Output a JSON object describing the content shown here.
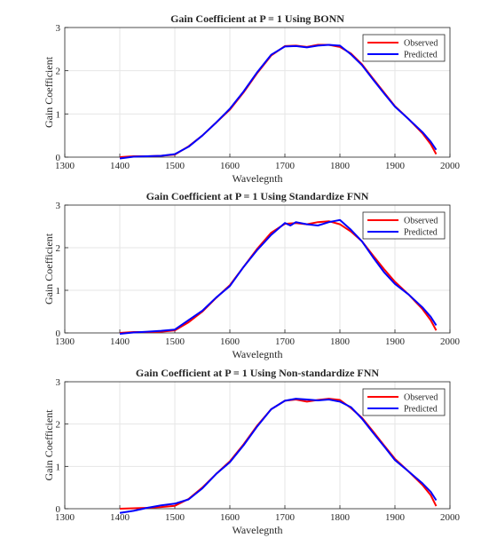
{
  "chart_data": [
    {
      "type": "line",
      "title": "Gain Coefficient at P = 1 Using BONN",
      "xlabel": "Wavelegnth",
      "ylabel": "Gain Coefficient",
      "xlim": [
        1300,
        2000
      ],
      "ylim": [
        0,
        3
      ],
      "xticks": [
        "1300",
        "1400",
        "1500",
        "1600",
        "1700",
        "1800",
        "1900",
        "2000"
      ],
      "yticks": [
        "0",
        "1",
        "2",
        "3"
      ],
      "grid": true,
      "legend": "top-right",
      "series": [
        {
          "name": "Observed",
          "color": "#ff0000",
          "x": [
            1400,
            1425,
            1450,
            1475,
            1500,
            1525,
            1550,
            1575,
            1600,
            1625,
            1650,
            1675,
            1700,
            1720,
            1740,
            1760,
            1780,
            1800,
            1820,
            1840,
            1860,
            1880,
            1900,
            1925,
            1950,
            1965,
            1975
          ],
          "y": [
            0.0,
            0.02,
            0.02,
            0.03,
            0.06,
            0.25,
            0.5,
            0.8,
            1.1,
            1.5,
            1.95,
            2.35,
            2.57,
            2.58,
            2.55,
            2.6,
            2.6,
            2.55,
            2.4,
            2.15,
            1.82,
            1.5,
            1.18,
            0.88,
            0.55,
            0.3,
            0.07
          ]
        },
        {
          "name": "Predicted",
          "color": "#0000ff",
          "x": [
            1400,
            1425,
            1450,
            1475,
            1500,
            1525,
            1550,
            1575,
            1600,
            1625,
            1650,
            1675,
            1700,
            1720,
            1740,
            1760,
            1780,
            1800,
            1820,
            1840,
            1860,
            1880,
            1900,
            1925,
            1950,
            1965,
            1975
          ],
          "y": [
            -0.03,
            0.01,
            0.02,
            0.03,
            0.07,
            0.24,
            0.5,
            0.8,
            1.12,
            1.52,
            1.97,
            2.37,
            2.56,
            2.57,
            2.54,
            2.58,
            2.6,
            2.58,
            2.38,
            2.13,
            1.8,
            1.48,
            1.17,
            0.88,
            0.58,
            0.36,
            0.17
          ]
        }
      ]
    },
    {
      "type": "line",
      "title": "Gain Coefficient at P = 1 Using Standardize FNN",
      "xlabel": "Wavelegnth",
      "ylabel": "Gain Coefficient",
      "xlim": [
        1300,
        2000
      ],
      "ylim": [
        0,
        3
      ],
      "xticks": [
        "1300",
        "1400",
        "1500",
        "1600",
        "1700",
        "1800",
        "1900",
        "2000"
      ],
      "yticks": [
        "0",
        "1",
        "2",
        "3"
      ],
      "grid": true,
      "legend": "top-right",
      "series": [
        {
          "name": "Observed",
          "color": "#ff0000",
          "x": [
            1400,
            1425,
            1450,
            1475,
            1500,
            1525,
            1550,
            1575,
            1600,
            1625,
            1650,
            1675,
            1700,
            1720,
            1740,
            1760,
            1780,
            1800,
            1820,
            1840,
            1860,
            1880,
            1900,
            1925,
            1950,
            1965,
            1975
          ],
          "y": [
            0.0,
            0.02,
            0.02,
            0.03,
            0.06,
            0.25,
            0.5,
            0.82,
            1.12,
            1.55,
            1.98,
            2.35,
            2.56,
            2.58,
            2.55,
            2.6,
            2.62,
            2.55,
            2.38,
            2.15,
            1.82,
            1.5,
            1.2,
            0.9,
            0.56,
            0.3,
            0.06
          ]
        },
        {
          "name": "Predicted",
          "color": "#0000ff",
          "x": [
            1400,
            1425,
            1450,
            1475,
            1500,
            1525,
            1550,
            1575,
            1600,
            1625,
            1650,
            1675,
            1700,
            1710,
            1720,
            1740,
            1760,
            1780,
            1800,
            1820,
            1840,
            1860,
            1880,
            1900,
            1925,
            1950,
            1965,
            1975
          ],
          "y": [
            -0.02,
            0.01,
            0.03,
            0.05,
            0.08,
            0.3,
            0.52,
            0.83,
            1.1,
            1.55,
            1.95,
            2.3,
            2.58,
            2.52,
            2.6,
            2.55,
            2.52,
            2.6,
            2.65,
            2.42,
            2.15,
            1.78,
            1.43,
            1.15,
            0.9,
            0.6,
            0.38,
            0.18
          ]
        }
      ]
    },
    {
      "type": "line",
      "title": "Gain Coefficient at P = 1 Using Non-standardize FNN",
      "xlabel": "Wavelegnth",
      "ylabel": "Gain Coefficient",
      "xlim": [
        1300,
        2000
      ],
      "ylim": [
        0,
        3
      ],
      "xticks": [
        "1300",
        "1400",
        "1500",
        "1600",
        "1700",
        "1800",
        "1900",
        "2000"
      ],
      "yticks": [
        "0",
        "1",
        "2",
        "3"
      ],
      "grid": true,
      "legend": "top-right",
      "series": [
        {
          "name": "Observed",
          "color": "#ff0000",
          "x": [
            1400,
            1425,
            1450,
            1475,
            1500,
            1525,
            1550,
            1575,
            1600,
            1625,
            1650,
            1675,
            1700,
            1720,
            1740,
            1760,
            1780,
            1800,
            1820,
            1840,
            1860,
            1880,
            1900,
            1925,
            1950,
            1965,
            1975
          ],
          "y": [
            0.0,
            0.01,
            0.02,
            0.04,
            0.07,
            0.23,
            0.5,
            0.82,
            1.12,
            1.52,
            1.97,
            2.35,
            2.55,
            2.58,
            2.53,
            2.57,
            2.6,
            2.57,
            2.38,
            2.15,
            1.83,
            1.5,
            1.18,
            0.88,
            0.56,
            0.32,
            0.06
          ]
        },
        {
          "name": "Predicted",
          "color": "#0000ff",
          "x": [
            1400,
            1425,
            1450,
            1475,
            1500,
            1525,
            1550,
            1575,
            1600,
            1625,
            1650,
            1675,
            1700,
            1720,
            1740,
            1760,
            1780,
            1800,
            1820,
            1840,
            1860,
            1880,
            1900,
            1925,
            1950,
            1965,
            1975
          ],
          "y": [
            -0.1,
            -0.05,
            0.02,
            0.08,
            0.12,
            0.22,
            0.48,
            0.82,
            1.1,
            1.5,
            1.95,
            2.35,
            2.55,
            2.6,
            2.58,
            2.56,
            2.58,
            2.53,
            2.4,
            2.13,
            1.8,
            1.48,
            1.15,
            0.88,
            0.6,
            0.4,
            0.2
          ]
        }
      ]
    }
  ]
}
